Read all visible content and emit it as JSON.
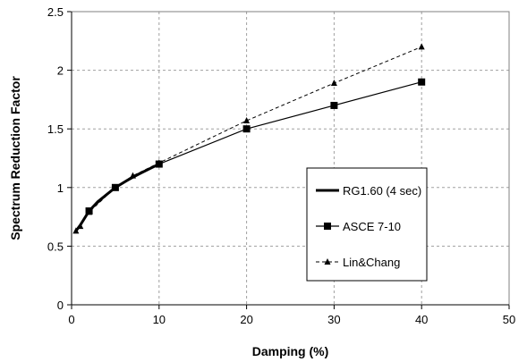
{
  "chart_data": {
    "type": "line",
    "xlabel": "Damping (%)",
    "ylabel": "Spectrum Reduction Factor",
    "xlim": [
      0,
      50
    ],
    "ylim": [
      0,
      2.5
    ],
    "x_ticks": [
      "0",
      "10",
      "20",
      "30",
      "40",
      "50"
    ],
    "y_ticks": [
      "0",
      "0.5",
      "1",
      "1.5",
      "2",
      "2.5"
    ],
    "grid": true,
    "legend_position": "right",
    "series": [
      {
        "name": "RG1.60 (4 sec)",
        "style": "solid-thick",
        "marker": "none",
        "color": "#000000",
        "x": [
          0.5,
          1,
          2,
          3,
          5,
          7,
          10
        ],
        "y": [
          0.63,
          0.68,
          0.8,
          0.88,
          1.0,
          1.09,
          1.2
        ]
      },
      {
        "name": "ASCE 7-10",
        "style": "solid",
        "marker": "square",
        "color": "#000000",
        "x": [
          2,
          5,
          10,
          20,
          30,
          40
        ],
        "y": [
          0.8,
          1.0,
          1.2,
          1.5,
          1.7,
          1.9
        ]
      },
      {
        "name": "Lin&Chang",
        "style": "dashed",
        "marker": "triangle",
        "color": "#000000",
        "x": [
          0.5,
          1,
          2,
          5,
          7,
          10,
          20,
          30,
          40
        ],
        "y": [
          0.63,
          0.67,
          0.79,
          1.0,
          1.1,
          1.21,
          1.57,
          1.89,
          2.2
        ]
      }
    ]
  }
}
